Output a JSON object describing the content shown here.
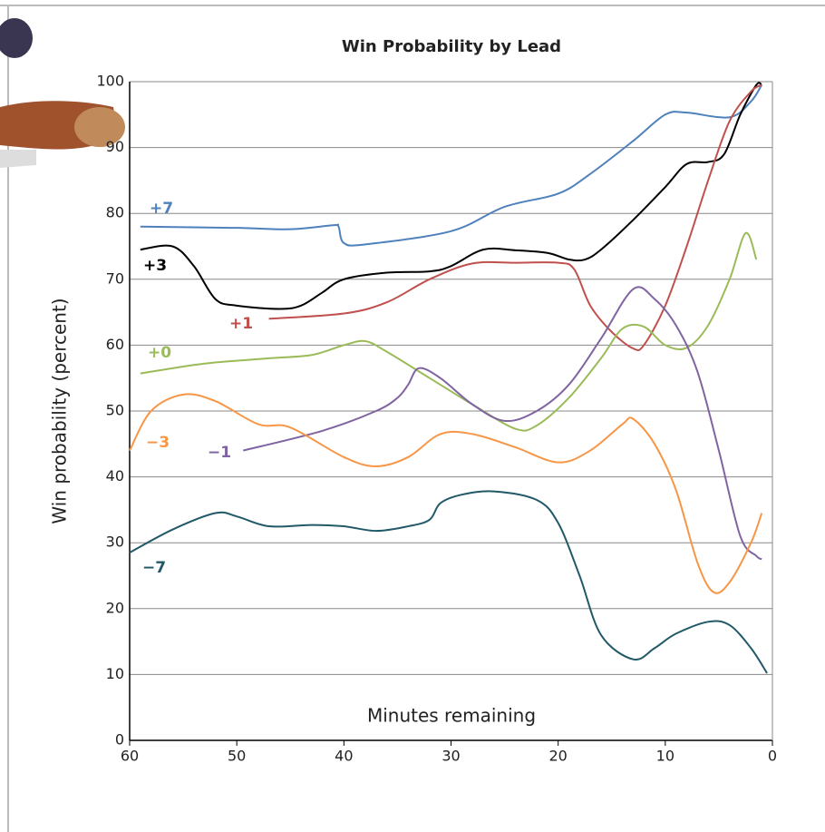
{
  "chart_data": {
    "type": "line",
    "title": "Win Probability by Lead",
    "x_label": "Minutes remaining",
    "y_label": "Win probability (percent)",
    "xlim": [
      60,
      0
    ],
    "xticks": [
      60,
      50,
      40,
      30,
      20,
      10,
      0
    ],
    "ylim": [
      0,
      100
    ],
    "yticks": [
      0,
      10,
      20,
      30,
      40,
      50,
      60,
      70,
      80,
      90,
      100
    ],
    "grid": true,
    "series": [
      {
        "name": "+7",
        "color": "#4f81bd",
        "x": [
          59,
          50,
          45,
          41,
          40.5,
          40,
          38,
          30,
          25,
          20,
          17,
          13,
          10,
          8,
          4,
          2,
          1
        ],
        "values": [
          78,
          77.8,
          77.6,
          78.2,
          78,
          75.5,
          75.3,
          77.3,
          81,
          83,
          86,
          91,
          95,
          95.3,
          94.6,
          97,
          99.5
        ]
      },
      {
        "name": "+3",
        "color": "#000000",
        "x": [
          59,
          56,
          54,
          52,
          50,
          46,
          44,
          42,
          40,
          36,
          32,
          30,
          27,
          24,
          21,
          19,
          17.5,
          16,
          13,
          10,
          8,
          6,
          4.5,
          3,
          1.5,
          1
        ],
        "values": [
          74.5,
          75,
          72,
          67,
          66,
          65.5,
          66,
          68,
          70,
          71,
          71.2,
          72,
          74.5,
          74.4,
          74,
          73,
          73,
          74.5,
          79,
          84,
          87.5,
          87.8,
          89,
          95,
          99.5,
          99.5
        ]
      },
      {
        "name": "+1",
        "color": "#c0504d",
        "x": [
          47,
          40,
          36,
          32,
          28,
          24,
          20,
          18.5,
          17,
          15,
          13,
          12,
          10,
          8,
          6,
          4,
          2,
          1
        ],
        "values": [
          64,
          64.8,
          66.5,
          70,
          72.4,
          72.5,
          72.5,
          71.5,
          66,
          62,
          59.5,
          60,
          66,
          75,
          85,
          94,
          98.5,
          99.5
        ]
      },
      {
        "name": "+0",
        "color": "#9bbb59",
        "x": [
          59,
          53,
          47,
          43,
          40,
          38,
          36,
          32,
          28,
          24,
          22,
          19,
          16,
          14,
          12,
          10,
          8,
          6,
          4,
          2.5,
          1.5
        ],
        "values": [
          55.7,
          57.2,
          58,
          58.5,
          60,
          60.6,
          59,
          55,
          51,
          47.3,
          47.8,
          52,
          58,
          62.5,
          62.8,
          60,
          59.6,
          63,
          70,
          77,
          73
        ]
      },
      {
        "name": "−1",
        "color": "#8064a2",
        "x": [
          49.4,
          42,
          37,
          35,
          34,
          33,
          31,
          28,
          25,
          22,
          19,
          16,
          13,
          11,
          9,
          7,
          5,
          3,
          1.5,
          1
        ],
        "values": [
          44,
          47,
          50,
          52,
          54,
          56.5,
          55,
          51,
          48.5,
          50,
          54,
          61,
          68.5,
          67,
          63,
          56,
          44,
          31,
          28,
          27.5
        ]
      },
      {
        "name": "−3",
        "color": "#f79646",
        "x": [
          60,
          58,
          55,
          52,
          48,
          45,
          40,
          37,
          34,
          31,
          28,
          24,
          20,
          17,
          14,
          13,
          11,
          9,
          7,
          5.5,
          4,
          2,
          1
        ],
        "values": [
          44,
          50,
          52.5,
          51.5,
          48,
          47.5,
          43,
          41.6,
          43,
          46.5,
          46.5,
          44.5,
          42.2,
          44,
          48,
          48.8,
          45,
          38,
          27,
          22.5,
          24,
          30,
          34.5
        ]
      },
      {
        "name": "−7",
        "color": "#215968",
        "x": [
          60,
          56,
          52,
          50,
          47,
          43,
          40,
          37,
          34,
          32,
          31,
          29,
          26,
          22,
          20,
          18,
          16,
          13,
          11,
          9,
          6,
          4,
          2,
          0.5
        ],
        "values": [
          28.5,
          32,
          34.5,
          34,
          32.5,
          32.7,
          32.5,
          31.8,
          32.5,
          33.5,
          36,
          37.3,
          37.8,
          36.5,
          33,
          25,
          16,
          12.3,
          14,
          16.2,
          18,
          17.5,
          14,
          10.2
        ]
      }
    ]
  }
}
